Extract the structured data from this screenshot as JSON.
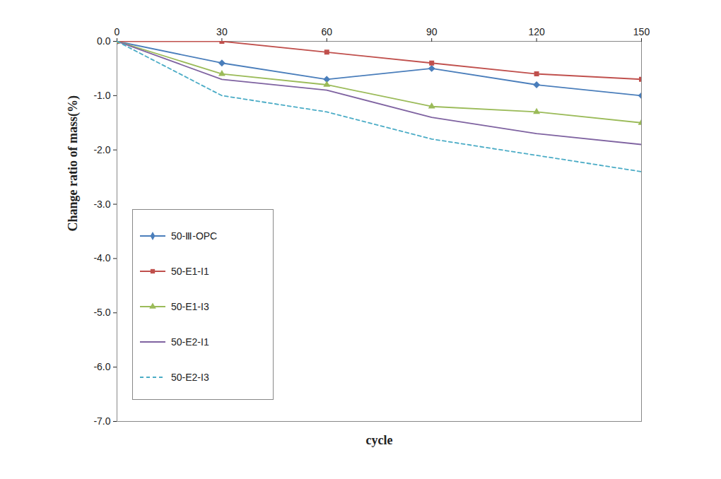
{
  "chart_data": {
    "type": "line",
    "xlabel": "cycle",
    "ylabel": "Change ratio of mass(%)",
    "x": [
      0,
      30,
      60,
      90,
      120,
      150
    ],
    "xlim": [
      0,
      150
    ],
    "xticks": [
      0,
      30,
      60,
      90,
      120,
      150
    ],
    "ylim": [
      -7,
      0
    ],
    "yticks": [
      {
        "value": 0,
        "label": "0.0"
      },
      {
        "value": -1,
        "label": "-1.0"
      },
      {
        "value": -2,
        "label": "-2.0"
      },
      {
        "value": -3,
        "label": "-3.0"
      },
      {
        "value": -4,
        "label": "-4.0"
      },
      {
        "value": -5,
        "label": "-5.0"
      },
      {
        "value": -6,
        "label": "-6.0"
      },
      {
        "value": -7,
        "label": "-7.0"
      }
    ],
    "grid": false,
    "legend": "lower left",
    "series": [
      {
        "name": "50-Ⅲ-OPC",
        "color": "#4a7ebb",
        "marker": "diamond",
        "line_style": "solid",
        "values": [
          0,
          -0.4,
          -0.7,
          -0.5,
          -0.8,
          -1.0
        ]
      },
      {
        "name": "50-E1-I1",
        "color": "#c0504d",
        "marker": "square",
        "line_style": "solid",
        "values": [
          0,
          0,
          -0.2,
          -0.4,
          -0.6,
          -0.7
        ]
      },
      {
        "name": "50-E1-I3",
        "color": "#9bbb59",
        "marker": "triangle",
        "line_style": "solid",
        "values": [
          0,
          -0.6,
          -0.8,
          -1.2,
          -1.3,
          -1.5
        ]
      },
      {
        "name": "50-E2-I1",
        "color": "#7f63a1",
        "marker": "none",
        "line_style": "solid",
        "values": [
          0,
          -0.7,
          -0.9,
          -1.4,
          -1.7,
          -1.9
        ]
      },
      {
        "name": "50-E2-I3",
        "color": "#4bacc6",
        "marker": "none",
        "line_style": "dashed",
        "values": [
          0,
          -1.0,
          -1.3,
          -1.8,
          -2.1,
          -2.4
        ]
      }
    ]
  }
}
